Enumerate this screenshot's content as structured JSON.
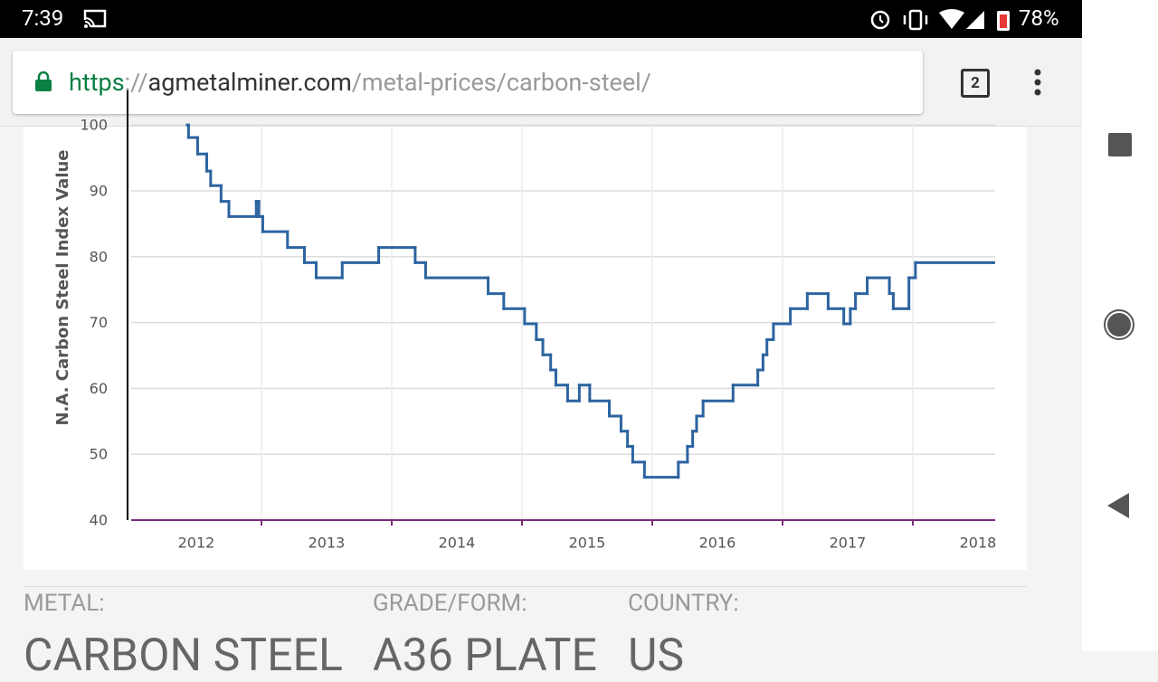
{
  "status_bar": {
    "time": "7:39",
    "battery": "78%"
  },
  "url_bar": {
    "scheme": "https",
    "separator": "://",
    "host": "agmetalminer.com",
    "path": "/metal-prices/carbon-steel/",
    "tab_count": "2"
  },
  "chart_data": {
    "type": "step-line",
    "y_label": "N.A. Carbon Steel Index Value",
    "xlim": [
      2012,
      2018.632
    ],
    "xticks": [
      {
        "value": 2012.5,
        "label": "2012"
      },
      {
        "value": 2013.5,
        "label": "2013"
      },
      {
        "value": 2014.5,
        "label": "2014"
      },
      {
        "value": 2015.5,
        "label": "2015"
      },
      {
        "value": 2016.5,
        "label": "2016"
      },
      {
        "value": 2017.5,
        "label": "2017"
      },
      {
        "value": 2018.5,
        "label": "2018"
      }
    ],
    "xminorticks": [
      2013,
      2014,
      2015,
      2016,
      2017,
      2018
    ],
    "ylim": [
      40,
      100
    ],
    "yticks": [
      40,
      50,
      60,
      70,
      80,
      90,
      100
    ],
    "grid": true,
    "series": [
      {
        "color": "#2c64a0",
        "x": [
          2012.43,
          2012.44,
          2012.51,
          2012.58,
          2012.61,
          2012.69,
          2012.75,
          2012.96,
          2012.98,
          2013.01,
          2013.2,
          2013.33,
          2013.42,
          2013.62,
          2013.9,
          2014.18,
          2014.26,
          2014.74,
          2014.86,
          2015.02,
          2015.11,
          2015.16,
          2015.22,
          2015.26,
          2015.35,
          2015.44,
          2015.52,
          2015.67,
          2015.76,
          2015.81,
          2015.85,
          2015.94,
          2016.2,
          2016.27,
          2016.31,
          2016.34,
          2016.39,
          2016.62,
          2016.81,
          2016.85,
          2016.88,
          2016.93,
          2017.06,
          2017.19,
          2017.35,
          2017.47,
          2017.52,
          2017.56,
          2017.65,
          2017.82,
          2017.85,
          2017.97,
          2018.02,
          2018.62
        ],
        "values": [
          100,
          98.1,
          95.6,
          93.0,
          90.8,
          88.4,
          86.1,
          88.4,
          86.1,
          83.8,
          81.4,
          79.1,
          76.8,
          79.1,
          81.4,
          79.1,
          76.8,
          74.4,
          72.1,
          69.8,
          67.4,
          65.1,
          62.8,
          60.5,
          58.1,
          60.5,
          58.1,
          55.8,
          53.5,
          51.2,
          48.8,
          46.5,
          48.8,
          51.2,
          53.5,
          55.8,
          58.1,
          60.5,
          62.8,
          65.1,
          67.4,
          69.8,
          72.1,
          74.4,
          72.1,
          69.8,
          72.1,
          74.4,
          76.8,
          74.4,
          72.1,
          76.8,
          79.1,
          79.1
        ]
      }
    ]
  },
  "details": {
    "labels": [
      "METAL:",
      "GRADE/FORM:",
      "COUNTRY:"
    ],
    "values": [
      "CARBON STEEL",
      "A36 PLATE",
      "US"
    ]
  }
}
